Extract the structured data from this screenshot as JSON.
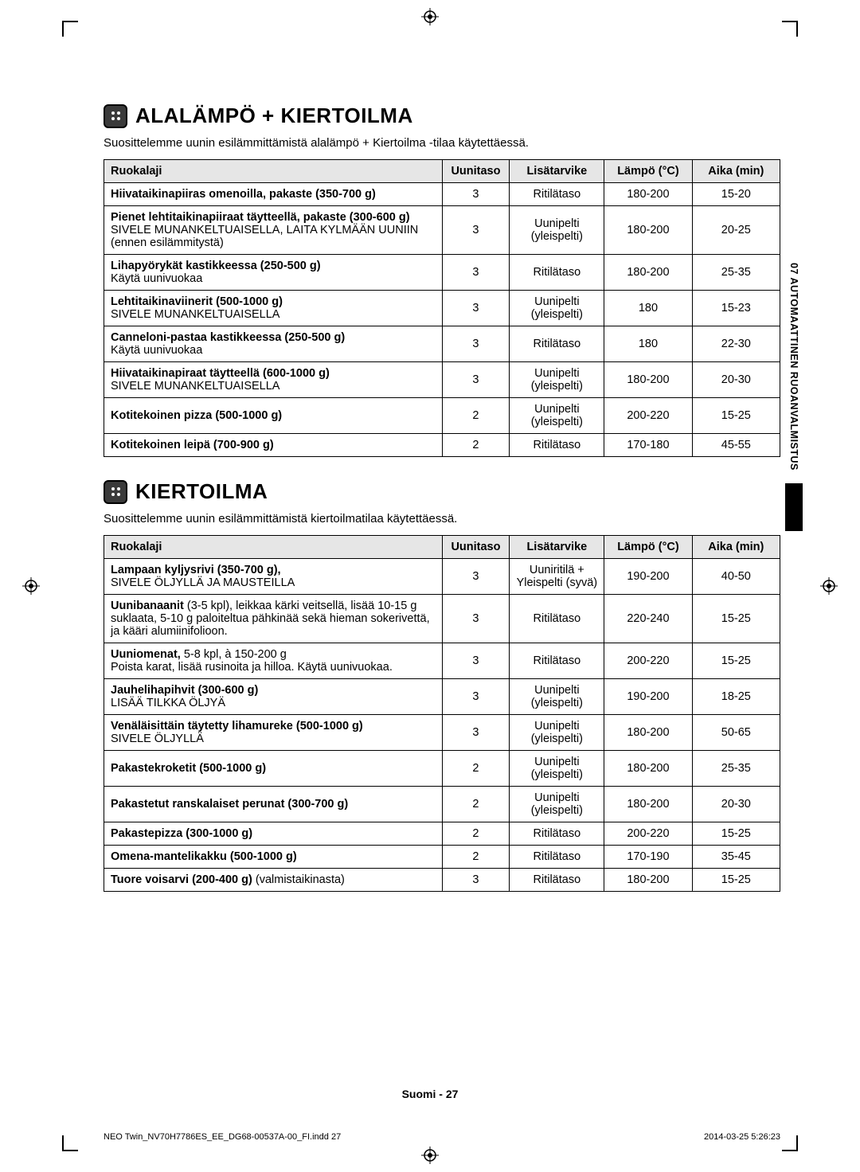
{
  "sideTab": "07  AUTOMAATTINEN RUOANVALMISTUS",
  "section1": {
    "title": "ALALÄMPÖ + KIERTOILMA",
    "intro": "Suosittelemme uunin esilämmittämistä alalämpö + Kiertoilma -tilaa käytettäessä.",
    "headers": {
      "dish": "Ruokalaji",
      "level": "Uunitaso",
      "acc": "Lisätarvike",
      "temp": "Lämpö (°C)",
      "time": "Aika (min)"
    },
    "rows": [
      {
        "dish": "<span class=\"bold\">Hiivataikinapiiras omenoilla, pakaste (350-700 g)</span>",
        "level": "3",
        "acc": "Ritilätaso",
        "temp": "180-200",
        "time": "15-20"
      },
      {
        "dish": "<span class=\"bold\">Pienet lehtitaikinapiiraat täytteellä, pakaste (300-600 g)</span><br>SIVELE MUNANKELTUAISELLA, LAITA KYLMÄÄN UUNIIN (ennen esilämmitystä)",
        "level": "3",
        "acc": "Uunipelti (yleispelti)",
        "temp": "180-200",
        "time": "20-25"
      },
      {
        "dish": "<span class=\"bold\">Lihapyörykät kastikkeessa (250-500 g)</span><br>Käytä uunivuokaa",
        "level": "3",
        "acc": "Ritilätaso",
        "temp": "180-200",
        "time": "25-35"
      },
      {
        "dish": "<span class=\"bold\">Lehtitaikinaviinerit (500-1000 g)</span><br>SIVELE MUNANKELTUAISELLA",
        "level": "3",
        "acc": "Uunipelti (yleispelti)",
        "temp": "180",
        "time": "15-23"
      },
      {
        "dish": "<span class=\"bold\">Canneloni-pastaa kastikkeessa (250-500 g)</span><br>Käytä uunivuokaa",
        "level": "3",
        "acc": "Ritilätaso",
        "temp": "180",
        "time": "22-30"
      },
      {
        "dish": "<span class=\"bold\">Hiivataikinapiraat täytteellä (600-1000 g)</span><br>SIVELE MUNANKELTUAISELLA",
        "level": "3",
        "acc": "Uunipelti (yleispelti)",
        "temp": "180-200",
        "time": "20-30"
      },
      {
        "dish": "<span class=\"bold\">Kotitekoinen pizza (500-1000 g)</span>",
        "level": "2",
        "acc": "Uunipelti (yleispelti)",
        "temp": "200-220",
        "time": "15-25"
      },
      {
        "dish": "<span class=\"bold\">Kotitekoinen leipä (700-900 g)</span>",
        "level": "2",
        "acc": "Ritilätaso",
        "temp": "170-180",
        "time": "45-55"
      }
    ]
  },
  "section2": {
    "title": "KIERTOILMA",
    "intro": "Suosittelemme uunin esilämmittämistä kiertoilmatilaa käytettäessä.",
    "headers": {
      "dish": "Ruokalaji",
      "level": "Uunitaso",
      "acc": "Lisätarvike",
      "temp": "Lämpö (°C)",
      "time": "Aika (min)"
    },
    "rows": [
      {
        "dish": "<span class=\"bold\">Lampaan kyljysrivi (350-700 g),</span><br>SIVELE ÖLJYLLÄ JA MAUSTEILLA",
        "level": "3",
        "acc": "Uuniritilä + Yleispelti (syvä)",
        "temp": "190-200",
        "time": "40-50"
      },
      {
        "dish": "<span class=\"bold\">Uunibanaanit</span> (3-5 kpl), leikkaa kärki veitsellä, lisää 10-15 g suklaata, 5-10 g paloiteltua pähkinää sekä hieman sokerivettä, ja kääri alumiinifolioon.",
        "level": "3",
        "acc": "Ritilätaso",
        "temp": "220-240",
        "time": "15-25"
      },
      {
        "dish": "<span class=\"bold\">Uuniomenat,</span> 5-8 kpl, à 150-200 g<br>Poista karat, lisää rusinoita ja hilloa. Käytä uunivuokaa.",
        "level": "3",
        "acc": "Ritilätaso",
        "temp": "200-220",
        "time": "15-25"
      },
      {
        "dish": "<span class=\"bold\">Jauhelihapihvit (300-600 g)</span><br>LISÄÄ TILKKA ÖLJYÄ",
        "level": "3",
        "acc": "Uunipelti (yleispelti)",
        "temp": "190-200",
        "time": "18-25"
      },
      {
        "dish": "<span class=\"bold\">Venäläisittäin täytetty lihamureke (500-1000 g)</span><br>SIVELE ÖLJYLLÄ",
        "level": "3",
        "acc": "Uunipelti (yleispelti)",
        "temp": "180-200",
        "time": "50-65"
      },
      {
        "dish": "<span class=\"bold\">Pakastekroketit (500-1000 g)</span>",
        "level": "2",
        "acc": "Uunipelti (yleispelti)",
        "temp": "180-200",
        "time": "25-35"
      },
      {
        "dish": "<span class=\"bold\">Pakastetut ranskalaiset perunat (300-700 g)</span>",
        "level": "2",
        "acc": "Uunipelti (yleispelti)",
        "temp": "180-200",
        "time": "20-30"
      },
      {
        "dish": "<span class=\"bold\">Pakastepizza (300-1000 g)</span>",
        "level": "2",
        "acc": "Ritilätaso",
        "temp": "200-220",
        "time": "15-25"
      },
      {
        "dish": "<span class=\"bold\">Omena-mantelikakku (500-1000 g)</span>",
        "level": "2",
        "acc": "Ritilätaso",
        "temp": "170-190",
        "time": "35-45"
      },
      {
        "dish": "<span class=\"bold\">Tuore voisarvi (200-400 g)</span> (valmistaikinasta)",
        "level": "3",
        "acc": "Ritilätaso",
        "temp": "180-200",
        "time": "15-25"
      }
    ]
  },
  "footer": {
    "center": "Suomi - 27",
    "left": "NEO Twin_NV70H7786ES_EE_DG68-00537A-00_FI.indd   27",
    "right": "2014-03-25   5:26:23"
  }
}
